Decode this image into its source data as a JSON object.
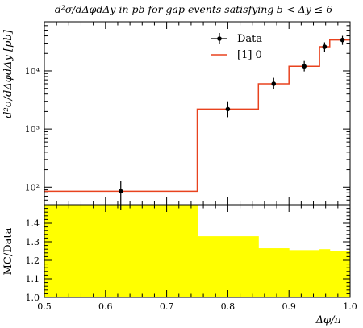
{
  "chart_data": [
    {
      "type": "line",
      "title": "d²σ/dΔφdΔy in pb for gap events satisfying 5 < Δy ≤ 6",
      "ylabel": "d²σ/dΔφdΔy [pb]",
      "xlabel": "Δφ/π",
      "y_scale": "log",
      "xlim": [
        0.5,
        1.0
      ],
      "ylim": [
        50,
        70000
      ],
      "y_ticks": [
        100,
        1000,
        10000
      ],
      "y_tick_labels": [
        "10²",
        "10³",
        "10⁴"
      ],
      "legend": {
        "placement": "top-right",
        "entries": [
          "Data",
          "[1] 0"
        ]
      },
      "series": [
        {
          "name": "Data",
          "marker": "point-with-errorbars",
          "color": "#000000",
          "points": [
            {
              "x": 0.625,
              "y": 85,
              "y_low": 40,
              "y_high": 130
            },
            {
              "x": 0.8,
              "y": 2200,
              "y_low": 1600,
              "y_high": 3000
            },
            {
              "x": 0.875,
              "y": 6000,
              "y_low": 4800,
              "y_high": 7600
            },
            {
              "x": 0.925,
              "y": 12000,
              "y_low": 9800,
              "y_high": 14800
            },
            {
              "x": 0.9583,
              "y": 26000,
              "y_low": 21000,
              "y_high": 31000
            },
            {
              "x": 0.9875,
              "y": 34000,
              "y_low": 28000,
              "y_high": 40000
            }
          ]
        },
        {
          "name": "[1] 0",
          "style": "histogram-step",
          "color": "#e8421e",
          "bins": [
            {
              "x0": 0.5,
              "x1": 0.75,
              "y": 85
            },
            {
              "x0": 0.75,
              "x1": 0.85,
              "y": 2200
            },
            {
              "x0": 0.85,
              "x1": 0.9,
              "y": 6000
            },
            {
              "x0": 0.9,
              "x1": 0.95,
              "y": 12000
            },
            {
              "x0": 0.95,
              "x1": 0.9667,
              "y": 26000
            },
            {
              "x0": 0.9667,
              "x1": 1.0,
              "y": 34000
            }
          ]
        }
      ]
    },
    {
      "type": "bar",
      "ylabel": "MC/Data",
      "xlabel": "Δφ/π",
      "xlim": [
        0.5,
        1.0
      ],
      "ylim": [
        1.0,
        1.5
      ],
      "x_ticks": [
        0.5,
        0.6,
        0.7,
        0.8,
        0.9,
        1.0
      ],
      "x_tick_labels": [
        "0.5",
        "0.6",
        "0.7",
        "0.8",
        "0.9",
        "1.0"
      ],
      "y_ticks": [
        1.0,
        1.1,
        1.2,
        1.3,
        1.4
      ],
      "y_tick_labels": [
        "1.0",
        "1.1",
        "1.2",
        "1.3",
        "1.4"
      ],
      "band_color": "#ffff00",
      "bins": [
        {
          "x0": 0.5,
          "x1": 0.75,
          "y": 1.5
        },
        {
          "x0": 0.75,
          "x1": 0.85,
          "y": 1.33
        },
        {
          "x0": 0.85,
          "x1": 0.9,
          "y": 1.265
        },
        {
          "x0": 0.9,
          "x1": 0.95,
          "y": 1.255
        },
        {
          "x0": 0.95,
          "x1": 0.9667,
          "y": 1.26
        },
        {
          "x0": 0.9667,
          "x1": 1.0,
          "y": 1.25
        }
      ]
    }
  ]
}
